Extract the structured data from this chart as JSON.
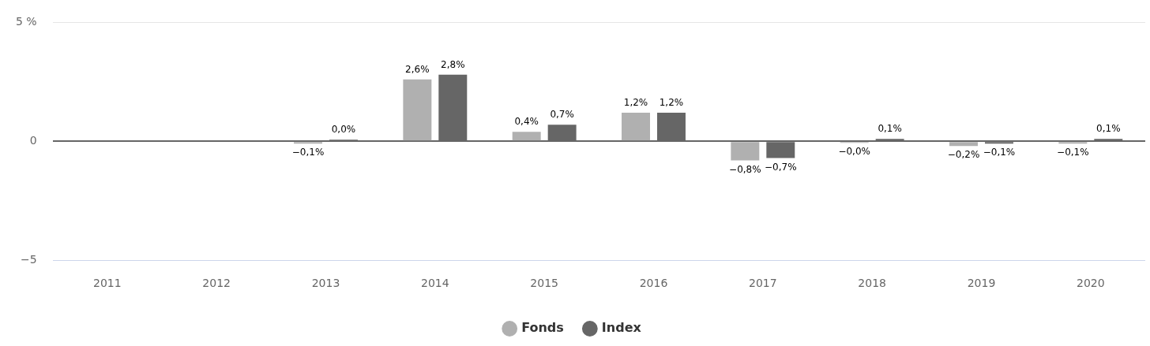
{
  "chart_data": {
    "type": "bar",
    "categories": [
      "2011",
      "2012",
      "2013",
      "2014",
      "2015",
      "2016",
      "2017",
      "2018",
      "2019",
      "2020"
    ],
    "series": [
      {
        "name": "Fonds",
        "color": "#b0b0b0",
        "values": [
          null,
          null,
          -0.1,
          2.6,
          0.4,
          1.2,
          -0.8,
          -0.02,
          -0.2,
          -0.1
        ],
        "value_labels": [
          null,
          null,
          "−0,1%",
          "2,6%",
          "0,4%",
          "1,2%",
          "−0,8%",
          "−0,0%",
          "−0,2%",
          "−0,1%"
        ]
      },
      {
        "name": "Index",
        "color": "#666666",
        "values": [
          null,
          null,
          0.02,
          2.8,
          0.7,
          1.2,
          -0.7,
          0.1,
          -0.1,
          0.1
        ],
        "value_labels": [
          null,
          null,
          "0,0%",
          "2,8%",
          "0,7%",
          "1,2%",
          "−0,7%",
          "0,1%",
          "−0,1%",
          "0,1%"
        ]
      }
    ],
    "ylim": [
      -5,
      5
    ],
    "yticks": [
      {
        "value": -5,
        "label": "−5"
      },
      0,
      {
        "value": 5,
        "label": "5 %"
      }
    ],
    "grid": "y",
    "legend": "bottom",
    "marker": "circle"
  }
}
